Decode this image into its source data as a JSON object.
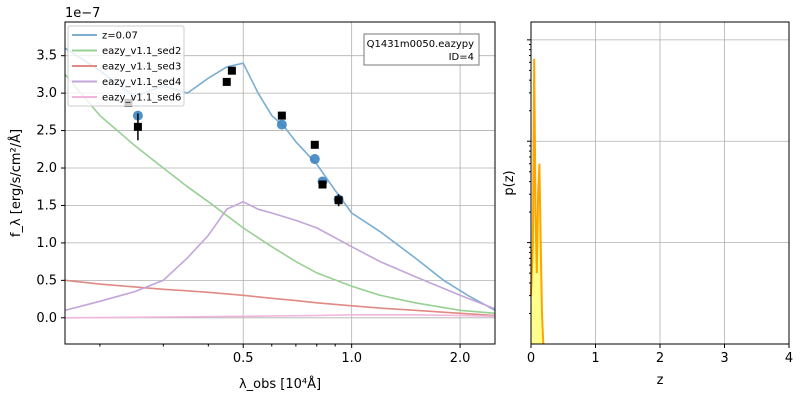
{
  "chart_data": [
    {
      "type": "line",
      "panel": "sed",
      "offset_label": "1e−7",
      "xlabel": "λ_obs [10⁴Å]",
      "ylabel": "f_λ [erg/s/cm²/Å]",
      "xscale": "log",
      "xlim": [
        0.16,
        2.5
      ],
      "ylim": [
        -0.35,
        3.95
      ],
      "x_ticks": [
        0.5,
        1.0,
        2.0
      ],
      "x_tick_labels": [
        "0.5",
        "1.0",
        "2.0"
      ],
      "y_ticks": [
        0.0,
        0.5,
        1.0,
        1.5,
        2.0,
        2.5,
        3.0,
        3.5
      ],
      "y_tick_labels": [
        "0.0",
        "0.5",
        "1.0",
        "1.5",
        "2.0",
        "2.5",
        "3.0",
        "3.5"
      ],
      "grid": true,
      "legend_placement": "top-left",
      "annotation": [
        "Q1431m0050.eazypy",
        "ID=4"
      ],
      "series": [
        {
          "name": "z=0.07",
          "color": "#7aaed3",
          "x": [
            0.16,
            0.2,
            0.25,
            0.3,
            0.35,
            0.4,
            0.45,
            0.5,
            0.55,
            0.6,
            0.65,
            0.7,
            0.8,
            0.9,
            1.0,
            1.2,
            1.5,
            1.8,
            2.1,
            2.5
          ],
          "y": [
            3.6,
            3.3,
            2.95,
            3.1,
            3.0,
            3.2,
            3.35,
            3.4,
            3.0,
            2.7,
            2.55,
            2.35,
            2.05,
            1.7,
            1.4,
            1.15,
            0.8,
            0.5,
            0.3,
            0.1
          ]
        },
        {
          "name": "eazy_v1.1_sed2",
          "color": "#98d094",
          "x": [
            0.16,
            0.2,
            0.25,
            0.3,
            0.35,
            0.4,
            0.5,
            0.6,
            0.7,
            0.8,
            1.0,
            1.2,
            1.5,
            2.0,
            2.5
          ],
          "y": [
            3.25,
            2.7,
            2.3,
            2.0,
            1.75,
            1.55,
            1.2,
            0.95,
            0.75,
            0.6,
            0.42,
            0.3,
            0.2,
            0.1,
            0.06
          ]
        },
        {
          "name": "eazy_v1.1_sed3",
          "color": "#e08a83",
          "x": [
            0.16,
            0.2,
            0.3,
            0.35,
            0.4,
            0.5,
            0.6,
            0.7,
            0.8,
            1.0,
            1.2,
            1.5,
            2.0,
            2.5
          ],
          "y": [
            0.5,
            0.45,
            0.38,
            0.36,
            0.34,
            0.3,
            0.26,
            0.23,
            0.2,
            0.16,
            0.13,
            0.1,
            0.06,
            0.03
          ]
        },
        {
          "name": "eazy_v1.1_sed4",
          "color": "#c3a5d9",
          "x": [
            0.16,
            0.2,
            0.25,
            0.3,
            0.35,
            0.4,
            0.45,
            0.5,
            0.55,
            0.6,
            0.7,
            0.8,
            1.0,
            1.2,
            1.5,
            2.0,
            2.5
          ],
          "y": [
            0.1,
            0.22,
            0.35,
            0.5,
            0.8,
            1.1,
            1.45,
            1.55,
            1.45,
            1.4,
            1.3,
            1.2,
            0.95,
            0.75,
            0.55,
            0.3,
            0.12
          ]
        },
        {
          "name": "eazy_v1.1_sed6",
          "color": "#f0b6dc",
          "x": [
            0.16,
            0.3,
            0.5,
            0.8,
            1.0,
            1.5,
            2.0,
            2.5
          ],
          "y": [
            0.0,
            0.01,
            0.02,
            0.03,
            0.04,
            0.04,
            0.03,
            0.02
          ]
        }
      ],
      "model_photometry": {
        "color": "#3d85c1",
        "x": [
          0.255,
          0.64,
          0.79,
          0.83,
          0.92
        ],
        "y": [
          2.7,
          2.58,
          2.12,
          1.82,
          1.58
        ]
      },
      "observed_photometry": {
        "color": "#000000",
        "x": [
          0.24,
          0.255,
          0.45,
          0.465,
          0.64,
          0.79,
          0.83,
          0.92
        ],
        "y": [
          2.87,
          2.55,
          3.15,
          3.3,
          2.7,
          2.31,
          1.78,
          1.57
        ],
        "yerr": [
          0.03,
          0.18,
          0.03,
          0.05,
          0.04,
          0.04,
          0.04,
          0.08
        ]
      }
    },
    {
      "type": "line",
      "panel": "pz",
      "xlabel": "z",
      "ylabel": "p(z)",
      "yscale": "log",
      "xlim": [
        0,
        4
      ],
      "x_ticks": [
        0,
        1,
        2,
        3,
        4
      ],
      "x_tick_labels": [
        "0",
        "1",
        "2",
        "3",
        "4"
      ],
      "grid": true,
      "series": [
        {
          "color": "#ffa500",
          "x": [
            0.0,
            0.03,
            0.05,
            0.07,
            0.09,
            0.11,
            0.13,
            0.15,
            0.17,
            0.19
          ],
          "y": [
            0.003,
            0.01,
            0.65,
            0.02,
            0.005,
            0.03,
            0.06,
            0.01,
            0.002,
            0.001
          ]
        }
      ]
    }
  ]
}
